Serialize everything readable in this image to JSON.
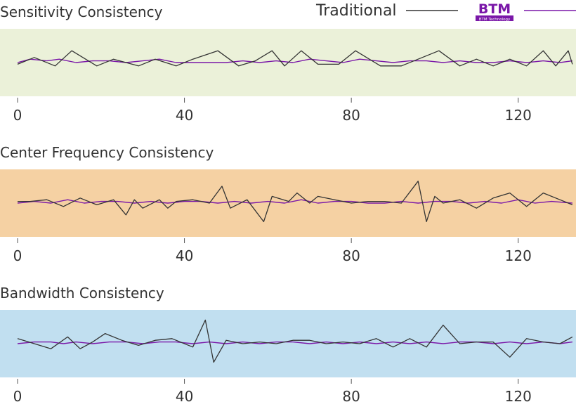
{
  "legend": {
    "traditional_label": "Traditional",
    "btm_logo_text": "BTM",
    "btm_logo_subtext": "BTM Technology",
    "traditional_color": "#333333",
    "btm_color": "#7a17a8"
  },
  "panel_colors": [
    "#ebf1d9",
    "#f5d1a3",
    "#c1dff0"
  ],
  "chart_data": [
    {
      "type": "line",
      "title": "Sensitivity Consistency",
      "xlim": [
        0,
        132
      ],
      "ylim": [
        -1,
        1
      ],
      "xticks": [
        0,
        40,
        80,
        120
      ],
      "grid": false,
      "series": [
        {
          "name": "Traditional",
          "color": "#333333",
          "x": [
            0,
            4,
            9,
            13,
            19,
            23,
            29,
            33,
            38,
            42,
            48,
            53,
            57,
            61,
            64,
            68,
            72,
            77,
            81,
            87,
            92,
            96,
            101,
            106,
            110,
            114,
            118,
            122,
            126,
            129,
            132,
            133
          ],
          "y": [
            -0.05,
            0.15,
            -0.1,
            0.35,
            -0.1,
            0.1,
            -0.1,
            0.1,
            -0.1,
            0.1,
            0.35,
            -0.1,
            0.05,
            0.35,
            -0.1,
            0.35,
            -0.05,
            -0.05,
            0.35,
            -0.1,
            -0.1,
            0.1,
            0.35,
            -0.1,
            0.1,
            -0.1,
            0.1,
            -0.1,
            0.35,
            -0.1,
            0.35,
            -0.05
          ]
        },
        {
          "name": "BTM",
          "color": "#7a17a8",
          "x": [
            0,
            3,
            7,
            10,
            14,
            18,
            22,
            26,
            30,
            34,
            38,
            42,
            46,
            50,
            54,
            58,
            62,
            66,
            70,
            74,
            78,
            82,
            86,
            90,
            94,
            98,
            102,
            106,
            110,
            114,
            118,
            122,
            126,
            130,
            133
          ],
          "y": [
            0.0,
            0.1,
            0.05,
            0.1,
            0.0,
            0.05,
            0.05,
            0.0,
            0.05,
            0.1,
            0.0,
            0.0,
            0.0,
            0.0,
            0.05,
            0.0,
            0.05,
            0.0,
            0.1,
            0.05,
            0.0,
            0.1,
            0.05,
            0.0,
            0.05,
            0.05,
            0.0,
            0.05,
            0.0,
            0.0,
            0.05,
            0.0,
            0.05,
            0.0,
            0.05
          ]
        }
      ]
    },
    {
      "type": "line",
      "title": "Center Frequency Consistency",
      "xlim": [
        0,
        132
      ],
      "ylim": [
        -1,
        1
      ],
      "xticks": [
        0,
        40,
        80,
        120
      ],
      "grid": false,
      "series": [
        {
          "name": "Traditional",
          "color": "#333333",
          "x": [
            0,
            3,
            7,
            11,
            15,
            19,
            23,
            26,
            28,
            30,
            34,
            36,
            38,
            42,
            46,
            49,
            51,
            55,
            59,
            61,
            65,
            67,
            70,
            72,
            76,
            80,
            84,
            88,
            92,
            96,
            98,
            100,
            102,
            106,
            110,
            114,
            118,
            122,
            126,
            130,
            133
          ],
          "y": [
            0.05,
            0.05,
            0.1,
            -0.1,
            0.15,
            -0.05,
            0.1,
            -0.35,
            0.1,
            -0.15,
            0.1,
            -0.15,
            0.05,
            0.1,
            0.0,
            0.5,
            -0.15,
            0.1,
            -0.55,
            0.2,
            0.05,
            0.3,
            0.0,
            0.2,
            0.1,
            0.0,
            0.05,
            0.05,
            0.0,
            0.65,
            -0.55,
            0.2,
            0.0,
            0.1,
            -0.15,
            0.15,
            0.3,
            -0.1,
            0.3,
            0.1,
            -0.05
          ]
        },
        {
          "name": "BTM",
          "color": "#7a17a8",
          "x": [
            0,
            4,
            8,
            12,
            16,
            20,
            24,
            28,
            32,
            36,
            40,
            44,
            48,
            52,
            56,
            60,
            64,
            68,
            72,
            76,
            80,
            84,
            88,
            92,
            96,
            100,
            104,
            108,
            112,
            116,
            120,
            124,
            128,
            133
          ],
          "y": [
            0.0,
            0.05,
            0.0,
            0.1,
            0.0,
            0.05,
            0.05,
            0.0,
            0.05,
            0.0,
            0.05,
            0.05,
            0.0,
            0.05,
            0.0,
            0.05,
            0.0,
            0.1,
            0.0,
            0.05,
            0.05,
            0.0,
            0.0,
            0.05,
            0.0,
            0.05,
            0.05,
            0.0,
            0.05,
            0.0,
            0.1,
            0.0,
            0.05,
            0.0
          ]
        }
      ]
    },
    {
      "type": "line",
      "title": "Bandwidth Consistency",
      "xlim": [
        0,
        132
      ],
      "ylim": [
        -1,
        1
      ],
      "xticks": [
        0,
        40,
        80,
        120
      ],
      "grid": false,
      "series": [
        {
          "name": "Traditional",
          "color": "#333333",
          "x": [
            0,
            4,
            8,
            12,
            15,
            18,
            21,
            25,
            29,
            33,
            37,
            42,
            45,
            47,
            50,
            54,
            58,
            62,
            66,
            70,
            74,
            78,
            82,
            86,
            90,
            94,
            98,
            102,
            106,
            110,
            114,
            118,
            122,
            126,
            130,
            133
          ],
          "y": [
            0.15,
            0.0,
            -0.15,
            0.2,
            -0.15,
            0.05,
            0.3,
            0.1,
            -0.05,
            0.1,
            0.15,
            -0.1,
            0.7,
            -0.55,
            0.1,
            0.0,
            0.05,
            0.0,
            0.1,
            0.1,
            0.0,
            0.05,
            0.0,
            0.15,
            -0.1,
            0.15,
            -0.1,
            0.55,
            0.0,
            0.05,
            0.05,
            -0.4,
            0.15,
            0.05,
            0.0,
            0.2
          ]
        },
        {
          "name": "BTM",
          "color": "#7a17a8",
          "x": [
            0,
            4,
            8,
            11,
            14,
            18,
            22,
            26,
            30,
            34,
            38,
            42,
            46,
            50,
            54,
            58,
            62,
            66,
            70,
            74,
            78,
            82,
            86,
            90,
            94,
            98,
            102,
            106,
            110,
            114,
            118,
            122,
            126,
            130,
            133
          ],
          "y": [
            0.0,
            0.05,
            0.05,
            0.0,
            0.05,
            0.0,
            0.05,
            0.05,
            0.0,
            0.05,
            0.05,
            0.0,
            0.05,
            0.0,
            0.05,
            0.0,
            0.05,
            0.05,
            0.0,
            0.05,
            0.0,
            0.05,
            0.0,
            0.05,
            0.0,
            0.05,
            0.0,
            0.05,
            0.05,
            0.0,
            0.05,
            0.0,
            0.05,
            0.0,
            0.05
          ]
        }
      ]
    }
  ]
}
